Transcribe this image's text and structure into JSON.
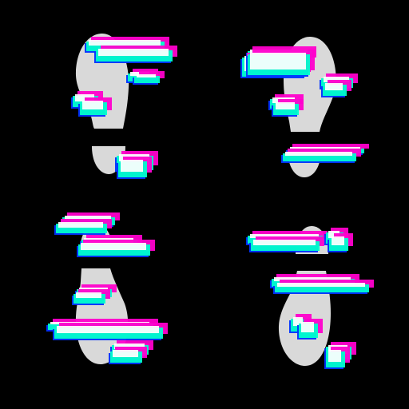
{
  "scene": {
    "background": "#000000",
    "footprint_color": "#d9d9d9",
    "glitch_palette": {
      "magenta": "#ff00cc",
      "blue": "#0033ff",
      "cyan": "#00ffcc",
      "white": "#ffffff"
    },
    "footprints": [
      {
        "name": "footprint-top-left",
        "orientation": "toe-up"
      },
      {
        "name": "footprint-top-right",
        "orientation": "toe-up"
      },
      {
        "name": "footprint-bottom-left",
        "orientation": "toe-down"
      },
      {
        "name": "footprint-bottom-right",
        "orientation": "toe-down"
      }
    ]
  }
}
